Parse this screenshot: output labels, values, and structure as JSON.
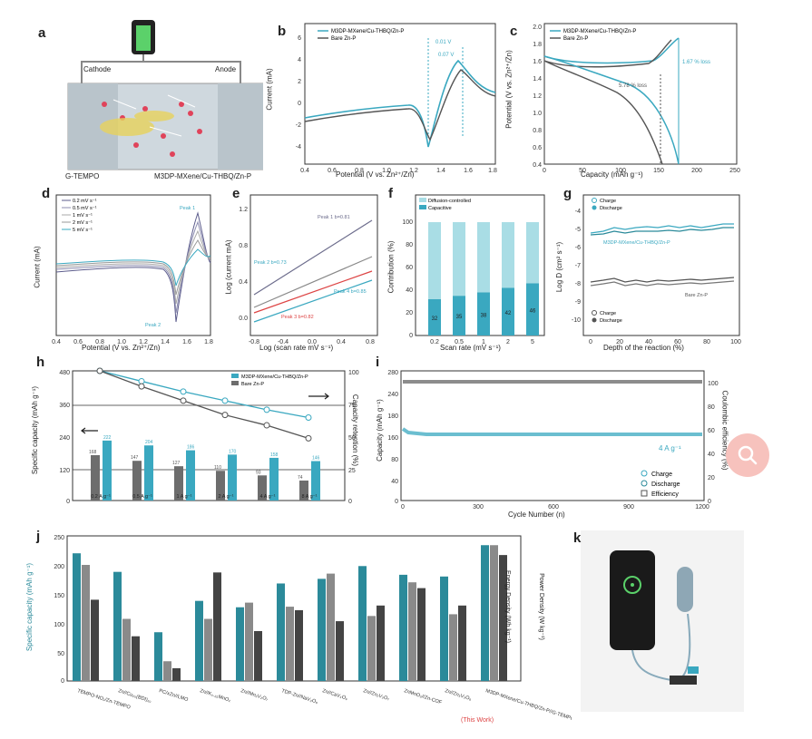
{
  "panels": {
    "a": {
      "label": "a",
      "cathode": "Cathode",
      "anode": "Anode",
      "left": "G-TEMPO",
      "right": "M3DP-MXene/Cu-THBQ/Zn-P"
    },
    "b": {
      "label": "b",
      "legend": [
        "M3DP-MXene/Cu-THBQ/Zn-P",
        "Bare Zn-P"
      ],
      "xlabel": "Potential (V vs. Zn²⁺/Zn)",
      "ylabel": "Current (mA)",
      "ann1": "0.01 V",
      "ann2": "0.07 V",
      "xticks": [
        "0.4",
        "0.6",
        "0.8",
        "1.0",
        "1.2",
        "1.4",
        "1.6",
        "1.8"
      ],
      "yticks": [
        "6",
        "4",
        "2",
        "0",
        "-2",
        "-4"
      ]
    },
    "c": {
      "label": "c",
      "legend": [
        "M3DP-MXene/Cu-THBQ/Zn-P",
        "Bare Zn-P"
      ],
      "xlabel": "Capacity (mAh g⁻¹)",
      "ylabel": "Potential (V vs. Zn²⁺/Zn)",
      "ann1": "1.67 % loss",
      "ann2": "5.78 % loss",
      "xticks": [
        "0",
        "50",
        "100",
        "150",
        "200",
        "250"
      ],
      "yticks": [
        "2.0",
        "1.8",
        "1.6",
        "1.4",
        "1.2",
        "1.0",
        "0.8",
        "0.6",
        "0.4"
      ]
    },
    "d": {
      "label": "d",
      "legend": [
        "0.2 mV s⁻¹",
        "0.5 mV s⁻¹",
        "1 mV s⁻¹",
        "2 mV s⁻¹",
        "5 mV s⁻¹"
      ],
      "xlabel": "Potential (V vs. Zn²⁺/Zn)",
      "ylabel": "Current (mA)",
      "peak1": "Peak 1",
      "peak2": "Peak 2",
      "xticks": [
        "0.4",
        "0.6",
        "0.8",
        "1.0",
        "1.2",
        "1.4",
        "1.6",
        "1.8"
      ]
    },
    "e": {
      "label": "e",
      "xlabel": "Log (scan rate mV s⁻¹)",
      "ylabel": "Log (current mA)",
      "ann": [
        "Peak 1 b=0.81",
        "Peak 2 b=0.73",
        "Peak 3 b=0.82",
        "Peak 4 b=0.85"
      ],
      "xticks": [
        "-0.8",
        "-0.4",
        "0.0",
        "0.4",
        "0.8"
      ],
      "yticks": [
        "1.2",
        "0.8",
        "0.4",
        "0.0"
      ]
    },
    "f": {
      "label": "f",
      "legend": [
        "Diffusion-controlled",
        "Capacitive"
      ],
      "xlabel": "Scan rate (mV s⁻¹)",
      "ylabel": "Contribution (%)",
      "categories": [
        "0.2",
        "0.5",
        "1",
        "2",
        "5"
      ],
      "capacitive": [
        32,
        35,
        38,
        42,
        46
      ],
      "xticks": [
        "0.2",
        "0.5",
        "1",
        "2",
        "5"
      ],
      "yticks": [
        "100",
        "80",
        "60",
        "40",
        "20",
        "0"
      ],
      "bar_labels": [
        "32",
        "35",
        "38",
        "42",
        "46"
      ]
    },
    "g": {
      "label": "g",
      "legend": [
        "Charge",
        "Discharge"
      ],
      "xlabel": "Depth of the reaction (%)",
      "ylabel": "Log D (cm² s⁻¹)",
      "top_label": "M3DP-MXene/Cu-THBQ/Zn-P",
      "bottom_label": "Bare Zn-P",
      "legend2": [
        "Charge",
        "Discharge"
      ],
      "xticks": [
        "0",
        "20",
        "40",
        "60",
        "80",
        "100"
      ],
      "yticks": [
        "-4",
        "-5",
        "-6",
        "-7",
        "-8",
        "-9",
        "-10"
      ]
    },
    "h": {
      "label": "h",
      "legend": [
        "M3DP-MXene/Cu-THBQ/Zn-P",
        "Bare Zn-P"
      ],
      "ylabel": "Specific capacity (mAh g⁻¹)",
      "ylabel2": "Capacity retention (%)",
      "categories": [
        "0.2 A g⁻¹",
        "0.5 A g⁻¹",
        "1 A g⁻¹",
        "2 A g⁻¹",
        "4 A g⁻¹",
        "8 A g⁻¹"
      ],
      "blue": [
        222,
        204,
        186,
        170,
        158,
        146
      ],
      "gray": [
        168,
        147,
        127,
        110,
        93,
        74
      ],
      "ret_blue": [
        100,
        92,
        84,
        77,
        70,
        64
      ],
      "ret_gray": [
        100,
        88,
        77,
        66,
        58,
        48
      ],
      "yticks": [
        "480",
        "360",
        "240",
        "120",
        "0"
      ],
      "y2ticks": [
        "100",
        "75",
        "50",
        "25",
        "0"
      ]
    },
    "i": {
      "label": "i",
      "xlabel": "Cycle Number (n)",
      "ylabel": "Capacity (mAh g⁻¹)",
      "ylabel2": "Coulombic efficiency (%)",
      "rate": "4 A g⁻¹",
      "legend": [
        "Charge",
        "Discharge",
        "Efficiency"
      ],
      "xticks": [
        "0",
        "300",
        "600",
        "900",
        "1200"
      ],
      "yticks": [
        "280",
        "240",
        "180",
        "160",
        "80",
        "40",
        "0"
      ],
      "y2ticks": [
        "100",
        "80",
        "60",
        "40",
        "20",
        "0"
      ]
    },
    "j": {
      "label": "j",
      "ylabel": "Specific capacity (mAh g⁻¹)",
      "ylabel2": "Energy Density (Wh kg⁻¹)",
      "ylabel3": "Power Density (W kg⁻¹)",
      "yticks": [
        "250",
        "200",
        "150",
        "100",
        "50",
        "0"
      ],
      "groups": [
        {
          "name": "TEMPO-NO₂/Zn-TEMPO",
          "vals": [
            220,
            200,
            140
          ]
        },
        {
          "name": "Zn//Cu₂₀(BDI)₂₀",
          "vals": [
            188,
            107,
            77
          ]
        },
        {
          "name": "PC/xZn//LMO",
          "vals": [
            84,
            34,
            22
          ]
        },
        {
          "name": "Zn//K₀.₂₅MnO₂",
          "vals": [
            138,
            107,
            187
          ]
        },
        {
          "name": "Zn//Mn₂V₂O₇",
          "vals": [
            127,
            135,
            86
          ]
        },
        {
          "name": "TDP-Zn//NaV₃O₈",
          "vals": [
            168,
            128,
            122
          ]
        },
        {
          "name": "Zn//CaV₄O₉",
          "vals": [
            176,
            185,
            103
          ]
        },
        {
          "name": "Zn//Zn₂V₂O₇",
          "vals": [
            198,
            112,
            130
          ]
        },
        {
          "name": "ZnMnO₂//Zn-COF",
          "vals": [
            183,
            170,
            160
          ]
        },
        {
          "name": "Zn//Zn₃V₂O₈",
          "vals": [
            180,
            115,
            130
          ]
        },
        {
          "name": "M3DP-MXene/Cu-THBQ/Zn-P//G-TEMPO",
          "vals": [
            234,
            234,
            217
          ]
        }
      ],
      "this_work": "(This Work)"
    },
    "k": {
      "label": "k"
    }
  },
  "colors": {
    "teal": "#3aa8c0",
    "gray": "#6d6d6d",
    "dark": "#444444",
    "bar_teal": "#2b8a9a",
    "light_teal": "#a9dde5"
  }
}
